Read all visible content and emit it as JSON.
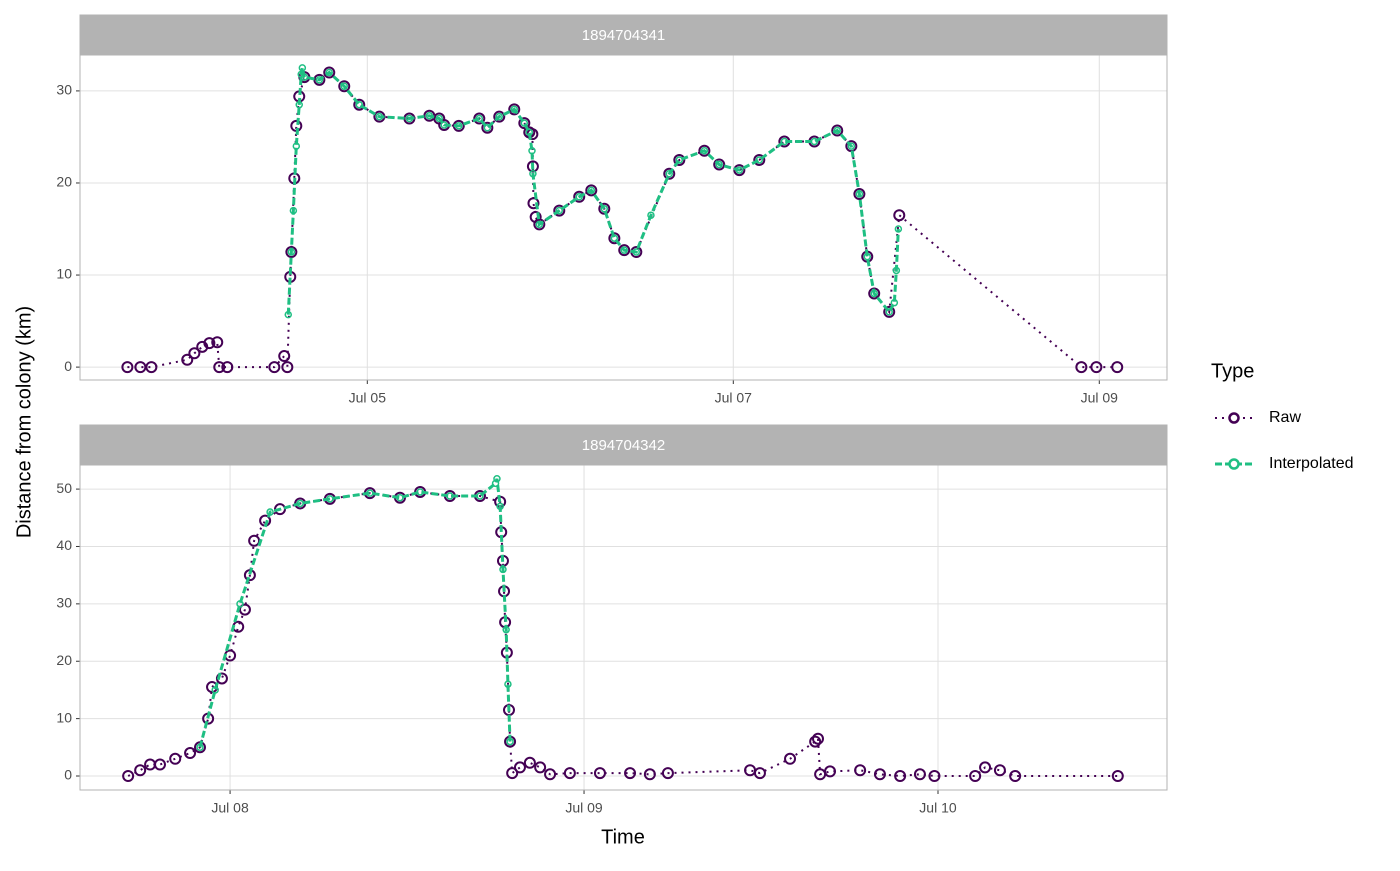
{
  "x_label": "Time",
  "y_label": "Distance from colony (km)",
  "legend_title": "Type",
  "chart_data": [
    {
      "type": "line",
      "title": "1894704341",
      "xlim": [
        3.43,
        9.37
      ],
      "xticks": [
        {
          "value": 5,
          "label": "Jul 05"
        },
        {
          "value": 7,
          "label": "Jul 07"
        },
        {
          "value": 9,
          "label": "Jul 09"
        }
      ],
      "ylim": [
        -1.4,
        33.9
      ],
      "yticks": [
        0,
        10,
        20,
        30
      ],
      "grid": true,
      "series": [
        {
          "name": "Raw",
          "color": "#440154",
          "x": [
            3.689,
            3.76,
            3.82,
            4.016,
            4.055,
            4.098,
            4.137,
            4.18,
            4.191,
            4.235,
            4.492,
            4.546,
            4.563,
            4.579,
            4.585,
            4.601,
            4.612,
            4.628,
            4.656,
            4.738,
            4.792,
            4.874,
            4.956,
            5.066,
            5.23,
            5.339,
            5.393,
            5.42,
            5.5,
            5.612,
            5.656,
            5.721,
            5.803,
            5.858,
            5.885,
            5.902,
            5.905,
            5.908,
            5.92,
            5.94,
            6.049,
            6.158,
            6.224,
            6.295,
            6.35,
            6.404,
            6.47,
            6.65,
            6.705,
            6.842,
            6.923,
            7.033,
            7.142,
            7.279,
            7.443,
            7.568,
            7.645,
            7.689,
            7.732,
            7.77,
            7.852,
            7.907,
            8.902,
            8.984,
            9.098
          ],
          "values": [
            0,
            0,
            0,
            0.8,
            1.5,
            2.2,
            2.6,
            2.7,
            0,
            0,
            0,
            1.2,
            0,
            9.8,
            12.5,
            20.5,
            26.2,
            29.4,
            31.5,
            31.2,
            32,
            30.5,
            28.5,
            27.2,
            27,
            27.3,
            27,
            26.3,
            26.2,
            27,
            26,
            27.2,
            28,
            26.5,
            25.5,
            25.3,
            21.8,
            17.8,
            16.3,
            15.5,
            17,
            18.5,
            19.2,
            17.2,
            14,
            12.7,
            12.5,
            21,
            22.5,
            23.5,
            22,
            21.4,
            22.5,
            24.5,
            24.5,
            25.7,
            24,
            18.8,
            12,
            8,
            6,
            16.5,
            0,
            0,
            0
          ]
        },
        {
          "name": "Interpolated",
          "color": "#1fbf83",
          "x": [
            4.568,
            4.585,
            4.596,
            4.612,
            4.628,
            4.639,
            4.645,
            4.656,
            4.738,
            4.792,
            4.874,
            4.956,
            5.066,
            5.23,
            5.339,
            5.393,
            5.42,
            5.5,
            5.612,
            5.656,
            5.721,
            5.803,
            5.858,
            5.885,
            5.9,
            5.905,
            5.94,
            6.049,
            6.158,
            6.224,
            6.295,
            6.35,
            6.404,
            6.47,
            6.55,
            6.65,
            6.705,
            6.842,
            6.923,
            7.033,
            7.142,
            7.279,
            7.443,
            7.568,
            7.645,
            7.689,
            7.732,
            7.77,
            7.852,
            7.88,
            7.891,
            7.902
          ],
          "values": [
            5.7,
            12.5,
            17,
            24,
            28.5,
            31.8,
            32.5,
            31.5,
            31.2,
            32,
            30.5,
            28.5,
            27.2,
            27,
            27.3,
            27,
            26.3,
            26.2,
            27,
            26,
            27.2,
            28,
            26.5,
            25.5,
            23.5,
            21,
            15.5,
            17,
            18.5,
            19.2,
            17.2,
            14,
            12.7,
            12.5,
            16.5,
            21,
            22.5,
            23.5,
            22,
            21.4,
            22.5,
            24.5,
            24.5,
            25.7,
            24,
            18.8,
            12,
            8,
            6,
            7,
            10.5,
            15
          ]
        }
      ]
    },
    {
      "type": "line",
      "title": "1894704342",
      "xlim": [
        7.576,
        10.647
      ],
      "xticks": [
        {
          "value": 8,
          "label": "Jul 08"
        },
        {
          "value": 9,
          "label": "Jul 09"
        },
        {
          "value": 10,
          "label": "Jul 10"
        }
      ],
      "ylim": [
        -2.44,
        54.2
      ],
      "yticks": [
        0,
        10,
        20,
        30,
        40,
        50
      ],
      "grid": true,
      "series": [
        {
          "name": "Raw",
          "color": "#440154",
          "x": [
            7.712,
            7.746,
            7.774,
            7.802,
            7.845,
            7.887,
            7.915,
            7.938,
            7.949,
            7.977,
            8.0,
            8.023,
            8.042,
            8.056,
            8.068,
            8.099,
            8.141,
            8.198,
            8.282,
            8.395,
            8.48,
            8.537,
            8.621,
            8.706,
            8.763,
            8.766,
            8.771,
            8.774,
            8.777,
            8.782,
            8.788,
            8.791,
            8.797,
            8.819,
            8.847,
            8.876,
            8.904,
            8.96,
            9.045,
            9.13,
            9.186,
            9.237,
            9.469,
            9.497,
            9.582,
            9.653,
            9.661,
            9.667,
            9.695,
            9.78,
            9.836,
            9.893,
            9.949,
            9.99,
            10.105,
            10.133,
            10.175,
            10.218,
            10.508
          ],
          "values": [
            0,
            1,
            2,
            2,
            3,
            4,
            5,
            10,
            15.5,
            17,
            21,
            26,
            29,
            35,
            41,
            44.5,
            46.5,
            47.5,
            48.3,
            49.3,
            48.5,
            49.5,
            48.8,
            48.8,
            47.8,
            42.5,
            37.5,
            32.2,
            26.8,
            21.5,
            11.5,
            6,
            0.5,
            1.5,
            2.3,
            1.5,
            0.3,
            0.5,
            0.5,
            0.5,
            0.3,
            0.5,
            1,
            0.5,
            3,
            6,
            6.5,
            0.3,
            0.8,
            1,
            0.3,
            0,
            0.3,
            0,
            0,
            1.5,
            1,
            0,
            0
          ]
        },
        {
          "name": "Interpolated",
          "color": "#1fbf83",
          "x": [
            7.915,
            7.958,
            8.028,
            8.113,
            8.198,
            8.282,
            8.395,
            8.48,
            8.537,
            8.621,
            8.706,
            8.75,
            8.754,
            8.763,
            8.771,
            8.78,
            8.785,
            8.791
          ],
          "values": [
            5,
            15,
            30,
            46,
            47.5,
            48.3,
            49.3,
            48.5,
            49.5,
            48.8,
            48.8,
            51,
            51.8,
            47,
            36,
            25.5,
            16,
            6
          ]
        }
      ]
    }
  ]
}
